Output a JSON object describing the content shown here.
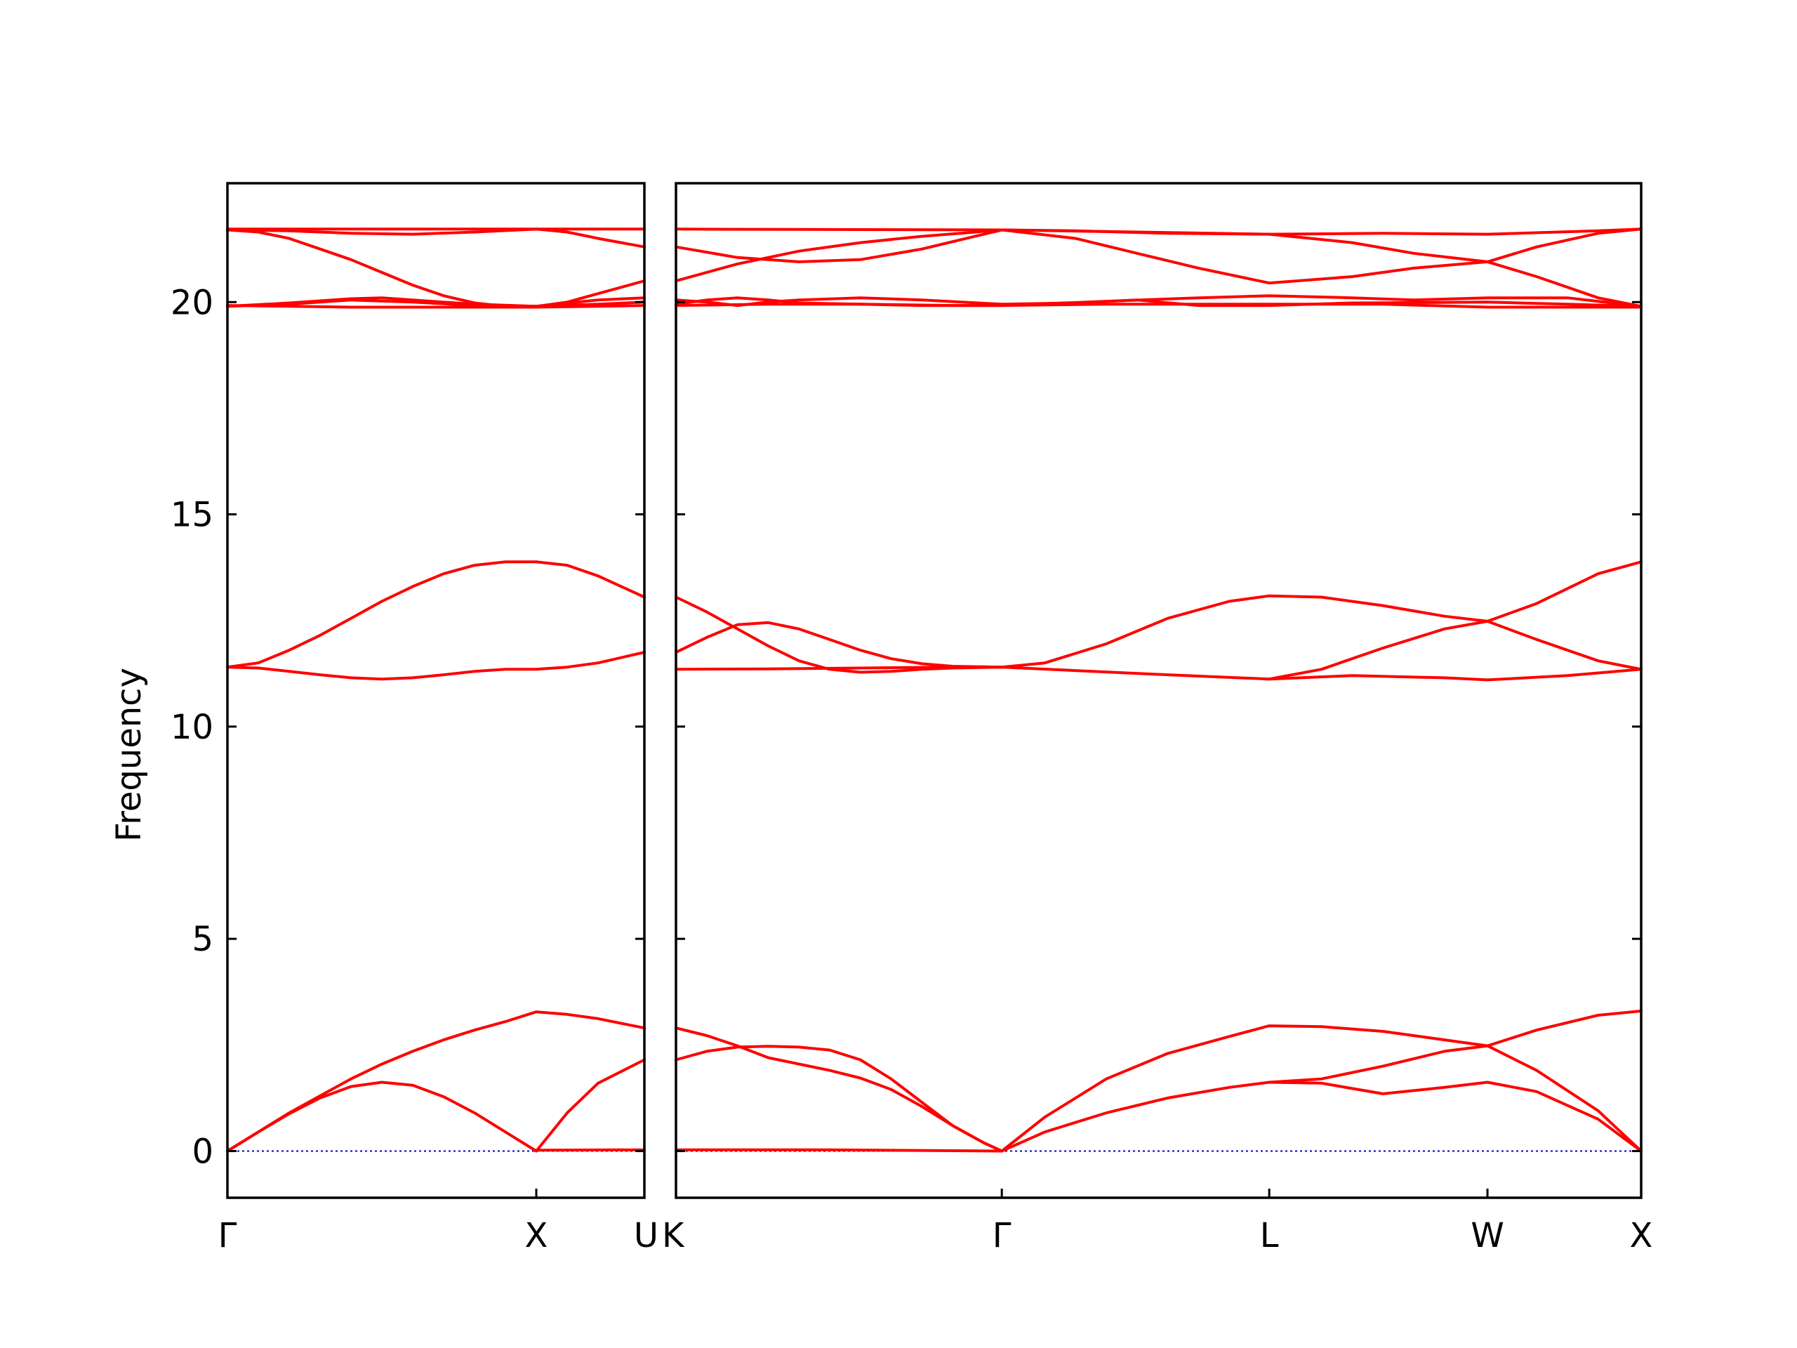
{
  "chart_data": {
    "type": "line",
    "title": "",
    "ylabel": "Frequency",
    "ylim": [
      -1.1,
      22.8
    ],
    "grid": false,
    "line_color": "#ff0000",
    "zero_line_color": "#0000cc",
    "yticks": [
      0,
      5,
      10,
      15,
      20
    ],
    "panels": [
      {
        "name": "panel-1",
        "xlim": [
          0,
          1.35
        ],
        "labels": [
          {
            "pos": 0,
            "text": "Γ"
          },
          {
            "pos": 1,
            "text": "X"
          },
          {
            "pos": 1.35,
            "text": "U"
          }
        ],
        "series": [
          {
            "x": [
              0,
              0.1,
              0.2,
              0.3,
              0.4,
              0.5,
              0.6,
              0.7,
              0.8,
              0.9,
              1.0,
              1.1,
              1.2,
              1.35
            ],
            "y": [
              0,
              0.45,
              0.9,
              1.3,
              1.7,
              2.05,
              2.35,
              2.62,
              2.85,
              3.05,
              3.28,
              3.22,
              3.12,
              2.9
            ]
          },
          {
            "x": [
              0,
              0.1,
              0.2,
              0.3,
              0.4,
              0.5,
              0.6,
              0.7,
              0.8,
              0.9,
              1.0
            ],
            "y": [
              0,
              0.45,
              0.88,
              1.25,
              1.52,
              1.62,
              1.55,
              1.28,
              0.9,
              0.45,
              0
            ]
          },
          {
            "x": [
              1.0,
              1.1,
              1.2,
              1.35
            ],
            "y": [
              0,
              0.9,
              1.6,
              2.15
            ]
          },
          {
            "x": [
              1.0,
              1.35
            ],
            "y": [
              0.02,
              0.03
            ]
          },
          {
            "x": [
              0,
              0.1,
              0.2,
              0.3,
              0.4,
              0.5,
              0.6,
              0.7,
              0.8,
              0.9,
              1.0
            ],
            "y": [
              11.4,
              11.38,
              11.3,
              11.22,
              11.15,
              11.12,
              11.15,
              11.22,
              11.3,
              11.35,
              11.35
            ]
          },
          {
            "x": [
              0,
              0.1,
              0.2,
              0.3,
              0.4,
              0.5,
              0.6,
              0.7,
              0.8,
              0.9,
              1.0
            ],
            "y": [
              11.4,
              11.5,
              11.8,
              12.15,
              12.55,
              12.95,
              13.3,
              13.6,
              13.8,
              13.88,
              13.88
            ]
          },
          {
            "x": [
              1.0,
              1.1,
              1.2,
              1.35
            ],
            "y": [
              11.35,
              11.4,
              11.5,
              11.75
            ]
          },
          {
            "x": [
              1.0,
              1.1,
              1.2,
              1.35
            ],
            "y": [
              13.88,
              13.8,
              13.55,
              13.05
            ]
          },
          {
            "x": [
              0,
              0.2,
              0.4,
              0.6,
              0.8,
              1.0,
              1.2,
              1.35
            ],
            "y": [
              19.9,
              19.95,
              20.05,
              20.0,
              19.92,
              19.9,
              19.95,
              20.0
            ]
          },
          {
            "x": [
              0,
              0.2,
              0.4,
              0.5,
              0.6,
              0.8,
              1.0,
              1.2,
              1.35
            ],
            "y": [
              19.9,
              19.98,
              20.08,
              20.1,
              20.05,
              19.95,
              19.9,
              20.05,
              20.1
            ]
          },
          {
            "x": [
              0,
              0.2,
              0.4,
              0.6,
              0.8,
              1.0,
              1.2,
              1.35
            ],
            "y": [
              19.92,
              19.9,
              19.88,
              19.88,
              19.88,
              19.88,
              19.9,
              19.92
            ]
          },
          {
            "x": [
              0,
              0.1,
              0.2,
              0.3,
              0.4,
              0.5,
              0.6,
              0.7,
              0.8,
              0.9,
              1.0
            ],
            "y": [
              21.7,
              21.65,
              21.5,
              21.25,
              21.0,
              20.7,
              20.4,
              20.15,
              19.98,
              19.9,
              19.9
            ]
          },
          {
            "x": [
              1.0,
              1.1,
              1.2,
              1.35
            ],
            "y": [
              19.9,
              20.0,
              20.2,
              20.5
            ]
          },
          {
            "x": [
              0,
              0.2,
              0.4,
              0.6,
              0.8,
              1.0,
              1.2,
              1.35
            ],
            "y": [
              21.7,
              21.68,
              21.62,
              21.6,
              21.65,
              21.72,
              21.72,
              21.72
            ]
          },
          {
            "x": [
              0,
              0.2,
              0.4,
              0.6,
              0.8,
              1.0,
              1.1,
              1.2,
              1.35
            ],
            "y": [
              21.72,
              21.72,
              21.72,
              21.72,
              21.72,
              21.72,
              21.65,
              21.5,
              21.3
            ]
          }
        ]
      },
      {
        "name": "panel-2",
        "xlim": [
          0,
          3.14
        ],
        "labels": [
          {
            "pos": 0,
            "text": "K"
          },
          {
            "pos": 1.06,
            "text": "Γ"
          },
          {
            "pos": 1.93,
            "text": "L"
          },
          {
            "pos": 2.64,
            "text": "W"
          },
          {
            "pos": 3.14,
            "text": "X"
          }
        ],
        "series": [
          {
            "x": [
              0,
              0.1,
              0.2,
              0.3,
              0.4,
              0.5,
              0.6,
              0.7,
              0.8,
              0.9,
              1.0,
              1.06
            ],
            "y": [
              2.9,
              2.72,
              2.48,
              2.2,
              2.05,
              1.9,
              1.72,
              1.45,
              1.05,
              0.6,
              0.2,
              0
            ]
          },
          {
            "x": [
              0,
              0.1,
              0.2,
              0.3,
              0.4,
              0.5,
              0.6,
              0.7,
              0.8,
              0.9,
              1.0,
              1.06
            ],
            "y": [
              2.15,
              2.35,
              2.45,
              2.47,
              2.45,
              2.38,
              2.15,
              1.7,
              1.15,
              0.6,
              0.2,
              0
            ]
          },
          {
            "x": [
              0,
              0.5,
              1.06
            ],
            "y": [
              0.03,
              0.03,
              0
            ]
          },
          {
            "x": [
              1.06,
              1.2,
              1.4,
              1.6,
              1.8,
              1.93,
              2.1,
              2.3,
              2.5,
              2.64,
              2.8,
              3.0,
              3.14
            ],
            "y": [
              0,
              0.8,
              1.7,
              2.3,
              2.7,
              2.95,
              2.93,
              2.82,
              2.62,
              2.48,
              2.85,
              3.2,
              3.3
            ]
          },
          {
            "x": [
              1.06,
              1.2,
              1.4,
              1.6,
              1.8,
              1.93,
              2.1,
              2.3,
              2.5,
              2.64,
              2.8,
              3.0,
              3.14
            ],
            "y": [
              0,
              0.45,
              0.9,
              1.25,
              1.5,
              1.62,
              1.6,
              1.35,
              1.5,
              1.62,
              1.4,
              0.75,
              0
            ]
          },
          {
            "x": [
              1.93,
              2.1,
              2.3,
              2.5,
              2.64,
              2.8,
              3.0,
              3.14
            ],
            "y": [
              1.62,
              1.7,
              2.0,
              2.35,
              2.48,
              1.9,
              0.95,
              0
            ]
          },
          {
            "x": [
              0,
              0.3,
              0.6,
              0.9,
              1.06,
              1.3,
              1.6,
              1.93,
              2.2,
              2.5,
              2.64,
              2.9,
              3.14
            ],
            "y": [
              11.35,
              11.36,
              11.38,
              11.4,
              11.4,
              11.32,
              11.22,
              11.12,
              11.2,
              11.15,
              11.1,
              11.2,
              11.35
            ]
          },
          {
            "x": [
              0,
              0.1,
              0.2,
              0.3,
              0.4,
              0.5,
              0.6,
              0.7,
              0.8,
              0.9,
              1.06
            ],
            "y": [
              13.05,
              12.7,
              12.3,
              11.9,
              11.55,
              11.35,
              11.28,
              11.3,
              11.35,
              11.38,
              11.4
            ]
          },
          {
            "x": [
              0,
              0.1,
              0.2,
              0.3,
              0.4,
              0.5,
              0.6,
              0.7,
              0.8,
              0.9,
              1.06
            ],
            "y": [
              11.75,
              12.1,
              12.4,
              12.45,
              12.3,
              12.05,
              11.8,
              11.6,
              11.48,
              11.42,
              11.4
            ]
          },
          {
            "x": [
              1.06,
              1.2,
              1.4,
              1.6,
              1.8,
              1.93,
              2.1,
              2.3,
              2.5,
              2.64,
              2.8,
              3.0,
              3.14
            ],
            "y": [
              11.4,
              11.5,
              11.95,
              12.55,
              12.95,
              13.08,
              13.05,
              12.85,
              12.6,
              12.48,
              12.9,
              13.6,
              13.88
            ]
          },
          {
            "x": [
              1.93,
              2.1,
              2.3,
              2.5,
              2.64,
              2.8,
              3.0,
              3.14
            ],
            "y": [
              11.12,
              11.35,
              11.85,
              12.3,
              12.48,
              12.05,
              11.55,
              11.35
            ]
          },
          {
            "x": [
              0,
              0.3,
              0.6,
              0.9,
              1.06,
              1.4,
              1.93,
              2.3,
              2.64,
              3.0,
              3.14
            ],
            "y": [
              19.92,
              19.95,
              19.95,
              19.92,
              19.92,
              19.95,
              19.95,
              19.95,
              19.88,
              19.88,
              19.88
            ]
          },
          {
            "x": [
              0,
              0.1,
              0.2,
              0.3,
              0.4,
              0.6,
              0.8,
              1.06,
              1.3,
              1.5,
              1.7,
              1.93,
              2.2,
              2.64,
              2.9,
              3.14
            ],
            "y": [
              20.05,
              20.0,
              19.92,
              20.0,
              20.05,
              20.1,
              20.05,
              19.95,
              19.98,
              20.05,
              19.92,
              19.92,
              19.98,
              20.0,
              19.95,
              19.9
            ]
          },
          {
            "x": [
              0,
              0.1,
              0.2,
              0.3,
              0.4,
              0.6,
              0.8,
              1.06,
              1.4,
              1.7,
              1.93,
              2.2,
              2.4,
              2.64,
              2.9,
              3.14
            ],
            "y": [
              19.95,
              20.05,
              20.1,
              20.05,
              19.98,
              19.95,
              19.92,
              19.92,
              20.02,
              20.1,
              20.15,
              20.1,
              20.05,
              20.1,
              20.1,
              19.9
            ]
          },
          {
            "x": [
              0,
              0.2,
              0.4,
              0.6,
              0.8,
              1.06,
              1.3,
              1.5,
              1.7,
              1.93,
              2.2,
              2.4,
              2.64,
              2.8,
              3.0,
              3.14
            ],
            "y": [
              21.3,
              21.05,
              20.95,
              21.0,
              21.25,
              21.7,
              21.5,
              21.15,
              20.8,
              20.45,
              20.6,
              20.8,
              20.95,
              20.6,
              20.1,
              19.9
            ]
          },
          {
            "x": [
              0,
              0.2,
              0.4,
              0.6,
              0.8,
              1.06,
              1.3,
              1.6,
              1.93,
              2.2,
              2.4,
              2.64,
              2.8,
              3.0,
              3.14
            ],
            "y": [
              20.5,
              20.9,
              21.2,
              21.4,
              21.55,
              21.7,
              21.68,
              21.62,
              21.6,
              21.4,
              21.15,
              20.95,
              21.3,
              21.62,
              21.72
            ]
          },
          {
            "x": [
              0,
              0.5,
              1.06,
              1.5,
              1.93,
              2.3,
              2.64,
              3.0,
              3.14
            ],
            "y": [
              21.72,
              21.71,
              21.7,
              21.65,
              21.6,
              21.62,
              21.6,
              21.68,
              21.72
            ]
          }
        ]
      }
    ]
  }
}
